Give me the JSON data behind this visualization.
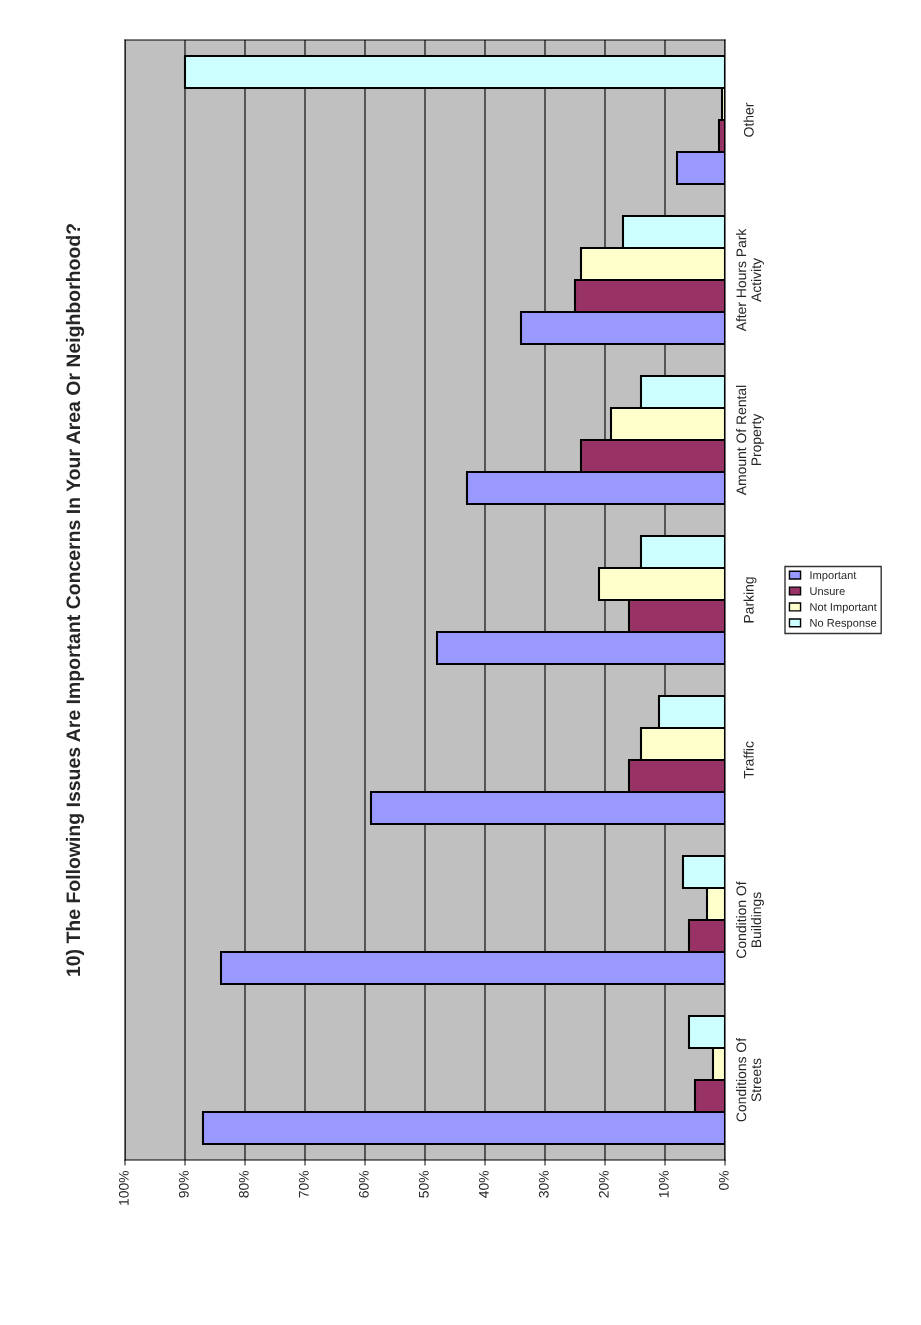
{
  "chart_data": {
    "type": "bar",
    "orientation": "horizontal",
    "title": "10) The Following Issues Are Important Concerns In Your Area Or Neighborhood?",
    "categories": [
      "Other",
      "After Hours Park\nActivity",
      "Amount Of Rental\nProperty",
      "Parking",
      "Traffic",
      "Condition Of\nBuildings",
      "Conditions Of\nStreets"
    ],
    "series": [
      {
        "name": "Important",
        "color": "#9999ff",
        "values": [
          8,
          34,
          43,
          48,
          59,
          84,
          87
        ]
      },
      {
        "name": "Unsure",
        "color": "#993366",
        "values": [
          1,
          25,
          24,
          16,
          16,
          6,
          5
        ]
      },
      {
        "name": "Not Important",
        "color": "#ffffcc",
        "values": [
          0.5,
          24,
          19,
          21,
          14,
          3,
          2
        ]
      },
      {
        "name": "No Response",
        "color": "#ccffff",
        "values": [
          90,
          17,
          14,
          14,
          11,
          7,
          6
        ]
      }
    ],
    "xlim": [
      100,
      0
    ],
    "xticks": [
      {
        "value": 100,
        "label": "100%"
      },
      {
        "value": 90,
        "label": "90%"
      },
      {
        "value": 80,
        "label": "80%"
      },
      {
        "value": 70,
        "label": "70%"
      },
      {
        "value": 60,
        "label": "60%"
      },
      {
        "value": 50,
        "label": "50%"
      },
      {
        "value": 40,
        "label": "40%"
      },
      {
        "value": 30,
        "label": "30%"
      },
      {
        "value": 20,
        "label": "20%"
      },
      {
        "value": 10,
        "label": "10%"
      },
      {
        "value": 0,
        "label": "0%"
      }
    ],
    "grid": "x",
    "legend": "right"
  }
}
